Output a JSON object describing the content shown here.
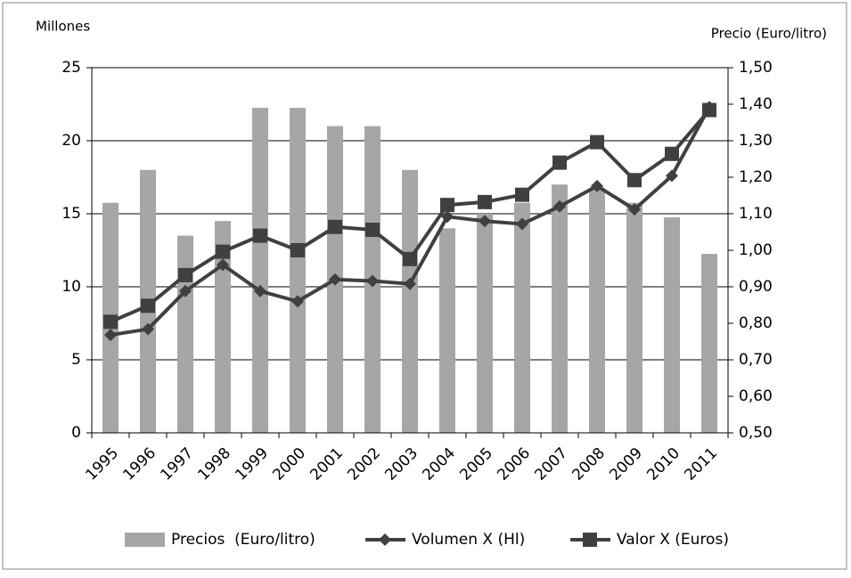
{
  "chart_data": {
    "type": "bar_line",
    "y_label": "Millones",
    "y2_label": "Precio (Euro/litro)",
    "categories": [
      "1995",
      "1996",
      "1997",
      "1998",
      "1999",
      "2000",
      "2001",
      "2002",
      "2003",
      "2004",
      "2005",
      "2006",
      "2007",
      "2008",
      "2009",
      "2010",
      "2011"
    ],
    "series": [
      {
        "name": "Precios  (Euro/litro)",
        "type": "bar",
        "axis": "y2",
        "color": "#a6a6a6",
        "values": [
          1.13,
          1.22,
          1.04,
          1.08,
          1.39,
          1.39,
          1.34,
          1.34,
          1.22,
          1.06,
          1.1,
          1.13,
          1.18,
          1.17,
          1.13,
          1.09,
          0.99
        ]
      },
      {
        "name": "Volumen X (Hl)",
        "type": "line",
        "marker": "diamond",
        "color": "#404040",
        "values": [
          6.7,
          7.1,
          9.7,
          11.5,
          9.7,
          9.0,
          10.5,
          10.4,
          10.2,
          14.8,
          14.5,
          14.3,
          15.5,
          16.9,
          15.3,
          17.6,
          22.3
        ]
      },
      {
        "name": "Valor X (Euros)",
        "type": "line",
        "marker": "square",
        "color": "#404040",
        "values": [
          7.6,
          8.7,
          10.8,
          12.4,
          13.5,
          12.5,
          14.1,
          13.9,
          11.9,
          15.6,
          15.8,
          16.3,
          18.5,
          19.9,
          17.3,
          19.1,
          22.1
        ]
      }
    ],
    "ylim": [
      0,
      25
    ],
    "yticks": [
      0,
      5,
      10,
      15,
      20,
      25
    ],
    "y2lim": [
      0.5,
      1.5
    ],
    "y2ticks": [
      {
        "value": 0.5,
        "label": "0,50"
      },
      {
        "value": 0.6,
        "label": "0,60"
      },
      {
        "value": 0.7,
        "label": "0,70"
      },
      {
        "value": 0.8,
        "label": "0,80"
      },
      {
        "value": 0.9,
        "label": "0,90"
      },
      {
        "value": 1.0,
        "label": "1,00"
      },
      {
        "value": 1.1,
        "label": "1,10"
      },
      {
        "value": 1.2,
        "label": "1,20"
      },
      {
        "value": 1.3,
        "label": "1,30"
      },
      {
        "value": 1.4,
        "label": "1,40"
      },
      {
        "value": 1.5,
        "label": "1,50"
      }
    ],
    "grid": true,
    "legend": "bottom"
  }
}
